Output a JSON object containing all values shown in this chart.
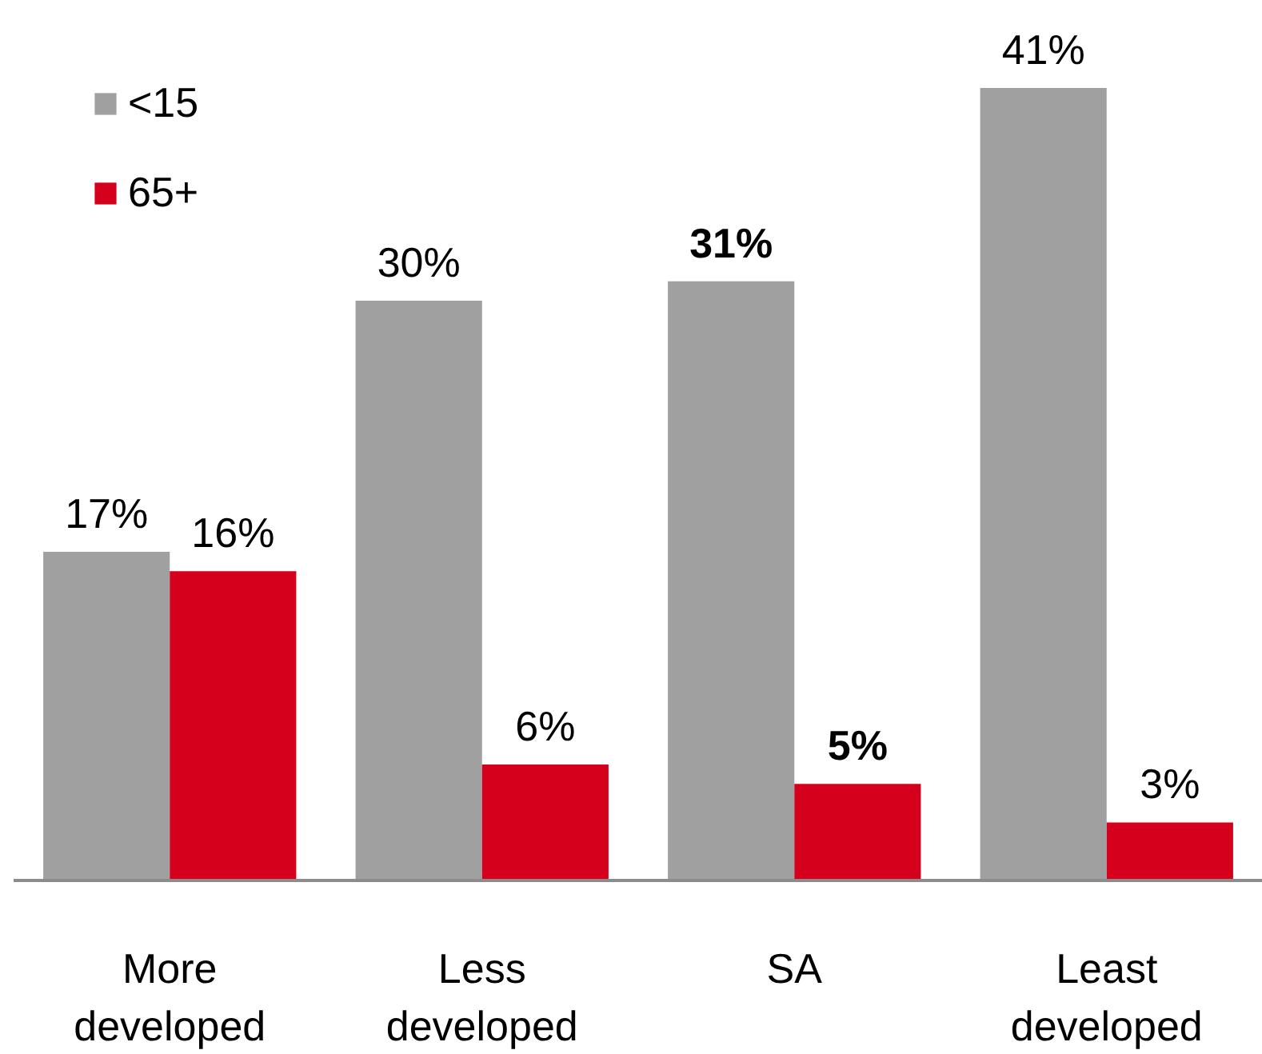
{
  "chart_data": {
    "type": "bar",
    "categories": [
      "More developed",
      "Less developed",
      "SA",
      "Least developed"
    ],
    "series": [
      {
        "name": "<15",
        "color": "#a0a0a0",
        "values": [
          17,
          30,
          31,
          41
        ],
        "value_labels": [
          "17%",
          "30%",
          "31%",
          "41%"
        ]
      },
      {
        "name": "65+",
        "color": "#d4001c",
        "values": [
          16,
          6,
          5,
          3
        ],
        "value_labels": [
          "16%",
          "6%",
          "5%",
          "3%"
        ]
      }
    ],
    "legend": "top left"
  }
}
